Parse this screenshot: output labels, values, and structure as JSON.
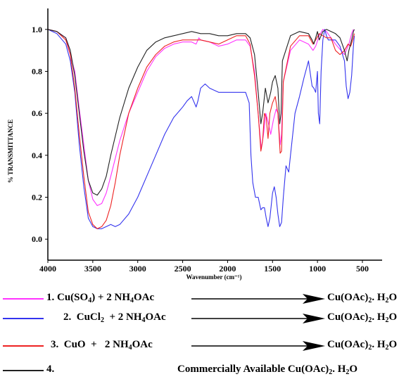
{
  "chart_data": {
    "type": "line",
    "xlabel": "Wavenumber (cm⁻¹)",
    "ylabel": "% TRANSMITTANCE",
    "xlim": [
      4000,
      500
    ],
    "ylim": [
      -0.1,
      1.1
    ],
    "x_reversed": true,
    "x_ticks": [
      4000,
      3500,
      3000,
      2500,
      2000,
      1500,
      1000,
      500
    ],
    "y_ticks": [
      0.0,
      0.2,
      0.4,
      0.6,
      0.8,
      1.0
    ],
    "y_tick_labels": [
      "0.0",
      "0.2",
      "0.4",
      "0.6",
      "0.8",
      "1.0"
    ],
    "grid": false,
    "series": [
      {
        "color": "#ff33ff",
        "points": [
          [
            4000,
            1.0
          ],
          [
            3900,
            0.99
          ],
          [
            3800,
            0.96
          ],
          [
            3700,
            0.8
          ],
          [
            3650,
            0.62
          ],
          [
            3600,
            0.45
          ],
          [
            3550,
            0.28
          ],
          [
            3500,
            0.19
          ],
          [
            3450,
            0.16
          ],
          [
            3400,
            0.17
          ],
          [
            3350,
            0.22
          ],
          [
            3300,
            0.3
          ],
          [
            3200,
            0.47
          ],
          [
            3100,
            0.6
          ],
          [
            3000,
            0.7
          ],
          [
            2900,
            0.8
          ],
          [
            2800,
            0.87
          ],
          [
            2700,
            0.91
          ],
          [
            2600,
            0.93
          ],
          [
            2500,
            0.94
          ],
          [
            2400,
            0.94
          ],
          [
            2350,
            0.93
          ],
          [
            2320,
            0.96
          ],
          [
            2300,
            0.95
          ],
          [
            2200,
            0.94
          ],
          [
            2100,
            0.92
          ],
          [
            2000,
            0.93
          ],
          [
            1900,
            0.95
          ],
          [
            1800,
            0.95
          ],
          [
            1750,
            0.92
          ],
          [
            1700,
            0.8
          ],
          [
            1650,
            0.55
          ],
          [
            1625,
            0.43
          ],
          [
            1600,
            0.5
          ],
          [
            1575,
            0.6
          ],
          [
            1550,
            0.56
          ],
          [
            1520,
            0.5
          ],
          [
            1490,
            0.57
          ],
          [
            1460,
            0.62
          ],
          [
            1440,
            0.6
          ],
          [
            1415,
            0.45
          ],
          [
            1400,
            0.5
          ],
          [
            1380,
            0.75
          ],
          [
            1300,
            0.9
          ],
          [
            1200,
            0.95
          ],
          [
            1100,
            0.93
          ],
          [
            1050,
            0.9
          ],
          [
            1020,
            0.92
          ],
          [
            980,
            0.97
          ],
          [
            940,
            1.0
          ],
          [
            900,
            0.99
          ],
          [
            800,
            0.93
          ],
          [
            700,
            0.88
          ],
          [
            650,
            0.93
          ],
          [
            620,
            0.98
          ],
          [
            600,
            1.0
          ]
        ]
      },
      {
        "color": "#3333ee",
        "points": [
          [
            4000,
            1.0
          ],
          [
            3900,
            0.98
          ],
          [
            3800,
            0.93
          ],
          [
            3750,
            0.85
          ],
          [
            3700,
            0.7
          ],
          [
            3650,
            0.45
          ],
          [
            3600,
            0.25
          ],
          [
            3550,
            0.1
          ],
          [
            3500,
            0.06
          ],
          [
            3450,
            0.05
          ],
          [
            3400,
            0.05
          ],
          [
            3350,
            0.06
          ],
          [
            3300,
            0.07
          ],
          [
            3250,
            0.06
          ],
          [
            3200,
            0.07
          ],
          [
            3100,
            0.12
          ],
          [
            3000,
            0.2
          ],
          [
            2900,
            0.3
          ],
          [
            2800,
            0.4
          ],
          [
            2700,
            0.5
          ],
          [
            2600,
            0.58
          ],
          [
            2500,
            0.63
          ],
          [
            2450,
            0.66
          ],
          [
            2400,
            0.68
          ],
          [
            2370,
            0.65
          ],
          [
            2350,
            0.63
          ],
          [
            2330,
            0.66
          ],
          [
            2300,
            0.72
          ],
          [
            2250,
            0.74
          ],
          [
            2200,
            0.72
          ],
          [
            2100,
            0.7
          ],
          [
            2000,
            0.7
          ],
          [
            1900,
            0.7
          ],
          [
            1800,
            0.7
          ],
          [
            1760,
            0.65
          ],
          [
            1740,
            0.4
          ],
          [
            1720,
            0.27
          ],
          [
            1690,
            0.2
          ],
          [
            1660,
            0.2
          ],
          [
            1630,
            0.14
          ],
          [
            1610,
            0.15
          ],
          [
            1590,
            0.15
          ],
          [
            1570,
            0.1
          ],
          [
            1550,
            0.06
          ],
          [
            1530,
            0.1
          ],
          [
            1500,
            0.22
          ],
          [
            1480,
            0.25
          ],
          [
            1460,
            0.2
          ],
          [
            1440,
            0.12
          ],
          [
            1420,
            0.06
          ],
          [
            1400,
            0.08
          ],
          [
            1380,
            0.2
          ],
          [
            1350,
            0.35
          ],
          [
            1320,
            0.32
          ],
          [
            1300,
            0.4
          ],
          [
            1250,
            0.6
          ],
          [
            1200,
            0.68
          ],
          [
            1150,
            0.77
          ],
          [
            1100,
            0.85
          ],
          [
            1060,
            0.73
          ],
          [
            1040,
            0.72
          ],
          [
            1020,
            0.7
          ],
          [
            1000,
            0.8
          ],
          [
            990,
            0.6
          ],
          [
            975,
            0.55
          ],
          [
            960,
            0.8
          ],
          [
            940,
            0.95
          ],
          [
            920,
            1.0
          ],
          [
            900,
            0.97
          ],
          [
            880,
            0.95
          ],
          [
            850,
            0.95
          ],
          [
            800,
            0.95
          ],
          [
            750,
            0.92
          ],
          [
            700,
            0.85
          ],
          [
            680,
            0.73
          ],
          [
            660,
            0.67
          ],
          [
            640,
            0.7
          ],
          [
            620,
            0.78
          ],
          [
            600,
            0.92
          ],
          [
            590,
            0.97
          ]
        ]
      },
      {
        "color": "#ee2222",
        "points": [
          [
            4000,
            1.0
          ],
          [
            3900,
            0.99
          ],
          [
            3800,
            0.95
          ],
          [
            3750,
            0.88
          ],
          [
            3700,
            0.72
          ],
          [
            3650,
            0.5
          ],
          [
            3600,
            0.3
          ],
          [
            3550,
            0.13
          ],
          [
            3500,
            0.07
          ],
          [
            3450,
            0.05
          ],
          [
            3400,
            0.06
          ],
          [
            3350,
            0.09
          ],
          [
            3300,
            0.16
          ],
          [
            3250,
            0.27
          ],
          [
            3200,
            0.4
          ],
          [
            3100,
            0.6
          ],
          [
            3000,
            0.72
          ],
          [
            2900,
            0.82
          ],
          [
            2800,
            0.88
          ],
          [
            2700,
            0.92
          ],
          [
            2600,
            0.94
          ],
          [
            2500,
            0.95
          ],
          [
            2400,
            0.95
          ],
          [
            2300,
            0.95
          ],
          [
            2200,
            0.94
          ],
          [
            2100,
            0.93
          ],
          [
            2000,
            0.95
          ],
          [
            1900,
            0.97
          ],
          [
            1800,
            0.97
          ],
          [
            1750,
            0.93
          ],
          [
            1700,
            0.78
          ],
          [
            1660,
            0.6
          ],
          [
            1630,
            0.42
          ],
          [
            1610,
            0.47
          ],
          [
            1590,
            0.6
          ],
          [
            1570,
            0.58
          ],
          [
            1550,
            0.48
          ],
          [
            1530,
            0.6
          ],
          [
            1500,
            0.65
          ],
          [
            1470,
            0.68
          ],
          [
            1440,
            0.6
          ],
          [
            1415,
            0.41
          ],
          [
            1400,
            0.42
          ],
          [
            1380,
            0.75
          ],
          [
            1300,
            0.92
          ],
          [
            1200,
            0.97
          ],
          [
            1100,
            0.97
          ],
          [
            1050,
            0.93
          ],
          [
            1020,
            0.95
          ],
          [
            980,
            0.98
          ],
          [
            940,
            0.97
          ],
          [
            900,
            0.96
          ],
          [
            850,
            0.96
          ],
          [
            800,
            0.9
          ],
          [
            750,
            0.88
          ],
          [
            700,
            0.9
          ],
          [
            660,
            0.93
          ],
          [
            630,
            0.92
          ],
          [
            600,
            0.96
          ],
          [
            590,
            0.98
          ]
        ]
      },
      {
        "color": "#222222",
        "points": [
          [
            4000,
            1.0
          ],
          [
            3900,
            0.99
          ],
          [
            3800,
            0.96
          ],
          [
            3750,
            0.9
          ],
          [
            3700,
            0.78
          ],
          [
            3650,
            0.6
          ],
          [
            3600,
            0.42
          ],
          [
            3550,
            0.28
          ],
          [
            3500,
            0.22
          ],
          [
            3450,
            0.21
          ],
          [
            3400,
            0.24
          ],
          [
            3350,
            0.3
          ],
          [
            3300,
            0.4
          ],
          [
            3200,
            0.58
          ],
          [
            3100,
            0.72
          ],
          [
            3000,
            0.82
          ],
          [
            2900,
            0.9
          ],
          [
            2800,
            0.94
          ],
          [
            2700,
            0.96
          ],
          [
            2600,
            0.97
          ],
          [
            2500,
            0.98
          ],
          [
            2400,
            0.99
          ],
          [
            2300,
            0.98
          ],
          [
            2200,
            0.98
          ],
          [
            2100,
            0.97
          ],
          [
            2000,
            0.97
          ],
          [
            1900,
            0.98
          ],
          [
            1800,
            0.98
          ],
          [
            1750,
            0.96
          ],
          [
            1700,
            0.88
          ],
          [
            1660,
            0.7
          ],
          [
            1630,
            0.55
          ],
          [
            1610,
            0.6
          ],
          [
            1580,
            0.72
          ],
          [
            1550,
            0.65
          ],
          [
            1520,
            0.7
          ],
          [
            1500,
            0.75
          ],
          [
            1470,
            0.78
          ],
          [
            1440,
            0.72
          ],
          [
            1420,
            0.55
          ],
          [
            1405,
            0.6
          ],
          [
            1390,
            0.85
          ],
          [
            1300,
            0.97
          ],
          [
            1200,
            0.99
          ],
          [
            1100,
            0.98
          ],
          [
            1060,
            0.95
          ],
          [
            1040,
            0.93
          ],
          [
            1020,
            0.96
          ],
          [
            1000,
            0.99
          ],
          [
            980,
            0.95
          ],
          [
            960,
            0.97
          ],
          [
            940,
            0.99
          ],
          [
            900,
            1.0
          ],
          [
            800,
            0.98
          ],
          [
            750,
            0.96
          ],
          [
            700,
            0.9
          ],
          [
            670,
            0.85
          ],
          [
            650,
            0.9
          ],
          [
            620,
            0.95
          ],
          [
            600,
            0.99
          ],
          [
            590,
            1.0
          ]
        ]
      }
    ]
  },
  "legend": [
    {
      "color": "#ff33ff",
      "label_html": "1. Cu(SO<sub>4</sub>) + 2 NH<sub>4</sub>OAc",
      "product_html": "Cu(OAc)<sub>2</sub>. H<sub>2</sub>O",
      "arrow": true
    },
    {
      "color": "#3333ee",
      "label_html": "2.&nbsp;&nbsp;CuCl<sub>2</sub>&nbsp;&nbsp;+ 2 NH<sub>4</sub>OAc",
      "product_html": "Cu(OAc)<sub>2</sub>. H<sub>2</sub>O",
      "arrow": true
    },
    {
      "color": "#ee2222",
      "label_html": "3.&nbsp;&nbsp;CuO&nbsp;&nbsp;+&nbsp;&nbsp;&nbsp;2 NH<sub>4</sub>OAc",
      "product_html": "Cu(OAc)<sub>2</sub>. H<sub>2</sub>O",
      "arrow": true
    },
    {
      "color": "#222222",
      "label_html": "4.",
      "product_html": "Commercially Available Cu(OAc)<sub>2</sub>. H<sub>2</sub>O",
      "arrow": false
    }
  ]
}
